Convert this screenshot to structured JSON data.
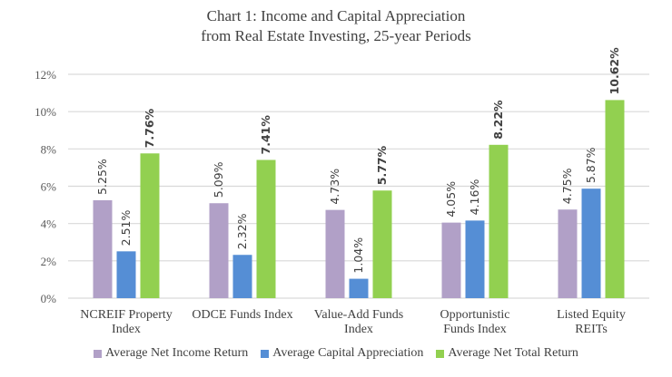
{
  "chart_data": {
    "type": "bar",
    "title_line1": "Chart 1: Income and Capital Appreciation",
    "title_line2": "from Real Estate Investing, 25-year Periods",
    "categories": [
      [
        "NCREIF Property",
        "Index"
      ],
      [
        "ODCE Funds Index"
      ],
      [
        "Value-Add Funds",
        "Index"
      ],
      [
        "Opportunistic",
        "Funds Index"
      ],
      [
        "Listed Equity",
        "REITs"
      ]
    ],
    "ylim": [
      0,
      12
    ],
    "yticks": [
      0,
      2,
      4,
      6,
      8,
      10,
      12
    ],
    "ytick_labels": [
      "0%",
      "2%",
      "4%",
      "6%",
      "8%",
      "10%",
      "12%"
    ],
    "grid": true,
    "legend_position": "bottom",
    "series": [
      {
        "name": "Average Net Income Return",
        "color": "#b1a0c7",
        "values": [
          5.25,
          5.09,
          4.73,
          4.05,
          4.75
        ],
        "labels": [
          "5.25%",
          "5.09%",
          "4.73%",
          "4.05%",
          "4.75%"
        ],
        "bold": false
      },
      {
        "name": "Average Capital Appreciation",
        "color": "#558ed5",
        "values": [
          2.51,
          2.32,
          1.04,
          4.16,
          5.87
        ],
        "labels": [
          "2.51%",
          "2.32%",
          "1.04%",
          "4.16%",
          "5.87%"
        ],
        "bold": false
      },
      {
        "name": "Average Net Total Return",
        "color": "#92d050",
        "values": [
          7.76,
          7.41,
          5.77,
          8.22,
          10.62
        ],
        "labels": [
          "7.76%",
          "7.41%",
          "5.77%",
          "8.22%",
          "10.62%"
        ],
        "bold": true
      }
    ]
  }
}
